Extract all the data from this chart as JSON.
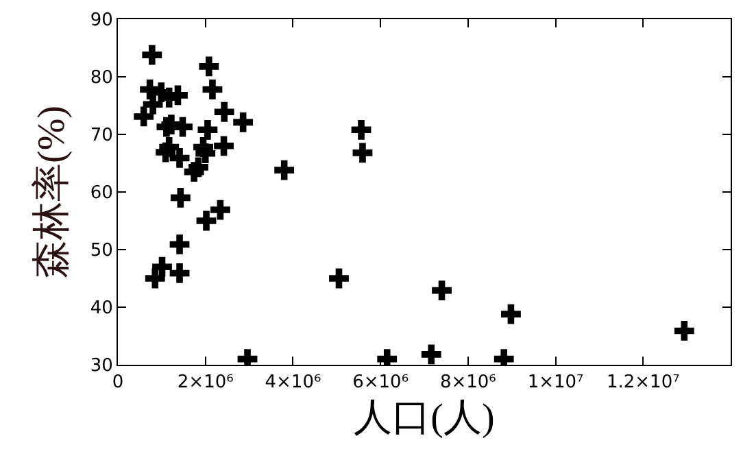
{
  "chart_data": {
    "type": "scatter",
    "xlabel": "人口(人)",
    "ylabel": "森林率(%)",
    "marker": "cross",
    "xlim": [
      0,
      14000000
    ],
    "ylim": [
      30,
      90
    ],
    "xticks": [
      0,
      {
        "value": 2000000,
        "label": "2×10⁶"
      },
      {
        "value": 4000000,
        "label": "4×10⁶"
      },
      {
        "value": 6000000,
        "label": "6×10⁶"
      },
      {
        "value": 8000000,
        "label": "8×10⁶"
      },
      {
        "value": 10000000,
        "label": "1×10⁷"
      },
      {
        "value": 12000000,
        "label": "1.2×10⁷"
      }
    ],
    "yticks": [
      30,
      40,
      50,
      60,
      70,
      80,
      90
    ],
    "series": [
      {
        "color": "#000000",
        "x": [
          780000,
          2080000,
          730000,
          990000,
          1170000,
          1370000,
          2160000,
          800000,
          590000,
          2430000,
          2860000,
          1110000,
          1220000,
          1480000,
          2050000,
          1170000,
          1090000,
          1410000,
          1950000,
          2420000,
          2000000,
          1840000,
          1740000,
          3800000,
          1430000,
          2340000,
          2020000,
          1410000,
          1010000,
          850000,
          1410000,
          2960000,
          5560000,
          5590000,
          5050000,
          7400000,
          8980000,
          12940000,
          6150000,
          7160000,
          8820000
        ],
        "values": [
          83.8,
          81.8,
          77.8,
          77.3,
          76.4,
          76.8,
          77.8,
          75.2,
          73.1,
          73.9,
          72.1,
          71.3,
          71.7,
          71.3,
          70.8,
          67.8,
          66.9,
          65.9,
          67.8,
          68.0,
          66.7,
          64.3,
          63.5,
          63.8,
          59.0,
          56.9,
          55.0,
          50.9,
          47.0,
          45.0,
          45.9,
          31.0,
          70.8,
          66.8,
          45.0,
          42.9,
          38.8,
          35.9,
          31.0,
          31.8,
          31.0
        ]
      }
    ]
  }
}
